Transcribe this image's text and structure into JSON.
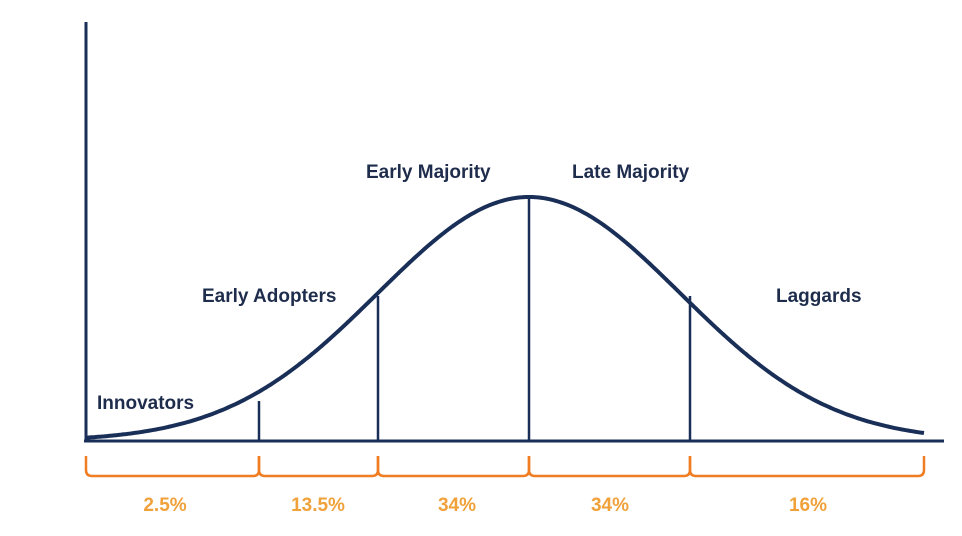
{
  "colors": {
    "curve": "#1a2f57",
    "axis": "#1a2f57",
    "bracket": "#f07d22",
    "percent_text": "#f0a13a",
    "label_text": "#1f2d4d"
  },
  "segments": [
    {
      "label": "Innovators",
      "percent": "2.5%",
      "share": 2.5
    },
    {
      "label": "Early Adopters",
      "percent": "13.5%",
      "share": 13.5
    },
    {
      "label": "Early Majority",
      "percent": "34%",
      "share": 34
    },
    {
      "label": "Late Majority",
      "percent": "34%",
      "share": 34
    },
    {
      "label": "Laggards",
      "percent": "16%",
      "share": 16
    }
  ]
}
